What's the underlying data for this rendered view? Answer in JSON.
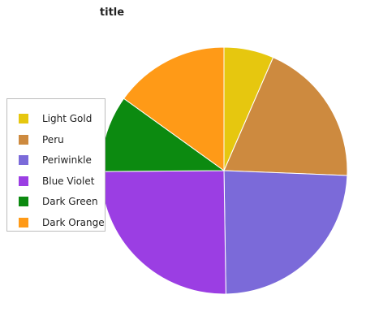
{
  "chart_data": {
    "type": "pie",
    "title": "title",
    "legend_position": "left",
    "categories": [
      "Light Gold",
      "Peru",
      "Periwinkle",
      "Blue Violet",
      "Dark Green",
      "Dark Orange"
    ],
    "values": [
      6.5,
      19,
      24,
      25,
      10,
      15
    ],
    "colors": [
      "#e6c70f",
      "#cd8a3f",
      "#7b6ad9",
      "#9b3ee3",
      "#0c8a10",
      "#ff9a17"
    ]
  }
}
